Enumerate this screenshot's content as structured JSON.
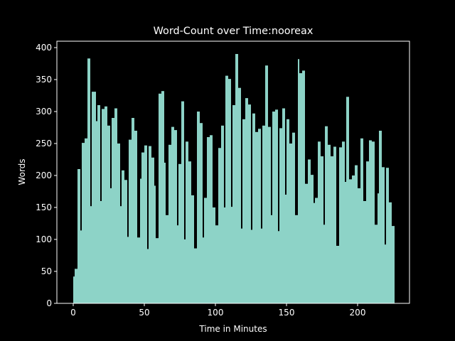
{
  "chart_data": {
    "type": "bar",
    "title": "Word-Count over Time:nooreax",
    "x_label": "Time in Minutes",
    "y_label": "Words",
    "color": "#8dd3c7",
    "x": [
      0,
      1,
      3,
      5,
      6,
      8,
      10,
      12,
      13,
      16,
      17,
      19,
      20,
      22,
      24,
      26,
      27,
      29,
      31,
      33,
      34,
      36,
      38,
      39,
      41,
      43,
      45,
      47,
      48,
      50,
      52,
      53,
      55,
      57,
      58,
      60,
      62,
      64,
      65,
      67,
      69,
      71,
      73,
      74,
      76,
      78,
      79,
      81,
      83,
      85,
      87,
      89,
      91,
      92,
      94,
      96,
      98,
      100,
      102,
      104,
      106,
      107,
      109,
      111,
      112,
      114,
      116,
      118,
      119,
      121,
      123,
      125,
      126,
      128,
      130,
      132,
      133,
      135,
      137,
      139,
      140,
      142,
      144,
      145,
      147,
      149,
      150,
      152,
      154,
      156,
      158,
      159,
      161,
      163,
      165,
      167,
      169,
      170,
      172,
      174,
      176,
      177,
      179,
      181,
      183,
      185,
      187,
      189,
      191,
      192,
      194,
      196,
      198,
      200,
      202,
      204,
      206,
      208,
      210,
      212,
      214,
      215,
      217,
      219,
      220,
      222,
      224
    ],
    "values": [
      42,
      54,
      210,
      114,
      251,
      258,
      383,
      152,
      331,
      285,
      310,
      160,
      304,
      308,
      278,
      180,
      290,
      305,
      250,
      152,
      208,
      193,
      104,
      256,
      290,
      270,
      103,
      195,
      236,
      247,
      85,
      246,
      228,
      184,
      102,
      328,
      332,
      220,
      138,
      248,
      276,
      271,
      122,
      218,
      316,
      100,
      253,
      222,
      169,
      86,
      300,
      282,
      103,
      165,
      260,
      263,
      150,
      122,
      243,
      278,
      150,
      356,
      351,
      151,
      310,
      390,
      337,
      117,
      288,
      321,
      311,
      115,
      297,
      268,
      273,
      117,
      278,
      372,
      276,
      138,
      300,
      303,
      113,
      274,
      305,
      170,
      288,
      250,
      267,
      138,
      382,
      360,
      364,
      187,
      225,
      201,
      157,
      165,
      253,
      230,
      123,
      277,
      248,
      230,
      245,
      90,
      244,
      253,
      190,
      323,
      194,
      200,
      216,
      180,
      258,
      160,
      222,
      255,
      253,
      123,
      172,
      270,
      213,
      92,
      212,
      158,
      121
    ],
    "xlim": [
      -11.5,
      236.5
    ],
    "ylim": [
      0,
      410
    ],
    "xticks": [
      0,
      50,
      100,
      150,
      200
    ],
    "yticks": [
      0,
      50,
      100,
      150,
      200,
      250,
      300,
      350,
      400
    ]
  }
}
